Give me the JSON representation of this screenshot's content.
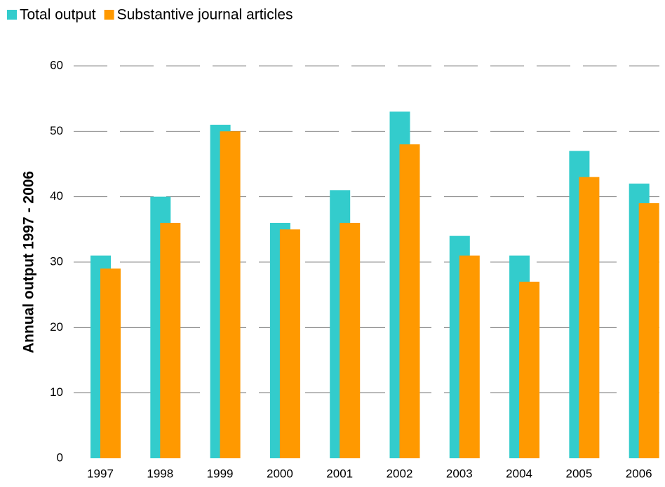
{
  "chart_data": {
    "type": "bar",
    "ylabel": "Annual output 1997 - 2006",
    "categories": [
      "1997",
      "1998",
      "1999",
      "2000",
      "2001",
      "2002",
      "2003",
      "2004",
      "2005",
      "2006"
    ],
    "series": [
      {
        "name": "Total output",
        "color": "#33cccc",
        "values": [
          31,
          40,
          51,
          36,
          41,
          53,
          34,
          31,
          47,
          42
        ]
      },
      {
        "name": "Substantive journal articles",
        "color": "#ff9900",
        "values": [
          29,
          36,
          50,
          35,
          36,
          48,
          31,
          27,
          43,
          39
        ]
      }
    ],
    "ylim": [
      0,
      60
    ],
    "yticks": [
      0,
      10,
      20,
      30,
      40,
      50,
      60
    ],
    "grid": true,
    "legend": "top-left"
  }
}
